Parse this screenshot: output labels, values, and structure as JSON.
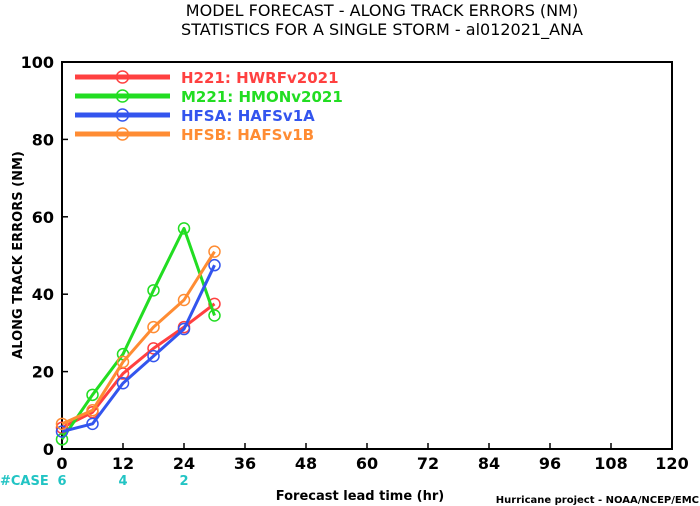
{
  "chart_data": {
    "type": "line",
    "title": "MODEL FORECAST - ALONG TRACK ERRORS (NM)",
    "subtitle": "STATISTICS FOR A SINGLE STORM - al012021_ANA",
    "xlabel": "Forecast lead time (hr)",
    "ylabel": "ALONG TRACK ERRORS (NM)",
    "xlim": [
      0,
      120
    ],
    "ylim": [
      0,
      100
    ],
    "x_ticks": [
      "0",
      "12",
      "24",
      "36",
      "48",
      "60",
      "72",
      "84",
      "96",
      "108",
      "120"
    ],
    "y_ticks": [
      "0",
      "20",
      "40",
      "60",
      "80",
      "100"
    ],
    "grid": false,
    "legend_position": "top-left",
    "series": [
      {
        "name": "H221: HWRFv2021",
        "color": "#ff4040",
        "x": [
          0,
          6,
          12,
          18,
          24,
          30
        ],
        "y": [
          5.5,
          9.5,
          19.5,
          26,
          31.5,
          37.5
        ]
      },
      {
        "name": "M221: HMONv2021",
        "color": "#22dd22",
        "x": [
          0,
          6,
          12,
          18,
          24,
          30
        ],
        "y": [
          2.5,
          14,
          24.5,
          41,
          57,
          34.5
        ]
      },
      {
        "name": "HFSA: HAFSv1A",
        "color": "#3355ee",
        "x": [
          0,
          6,
          12,
          18,
          24,
          30
        ],
        "y": [
          4.5,
          6.5,
          17,
          24,
          31,
          47.5
        ]
      },
      {
        "name": "HFSB: HAFSv1B",
        "color": "#ff8c33",
        "x": [
          0,
          6,
          12,
          18,
          24,
          30
        ],
        "y": [
          6.5,
          10,
          22.5,
          31.5,
          38.5,
          51
        ]
      }
    ],
    "cases": {
      "label": "#CASE",
      "color": "#22c4c4",
      "entries": [
        {
          "x": 0,
          "value": "6"
        },
        {
          "x": 12,
          "value": "4"
        },
        {
          "x": 24,
          "value": "2"
        }
      ]
    }
  },
  "credit": "Hurricane project - NOAA/NCEP/EMC"
}
